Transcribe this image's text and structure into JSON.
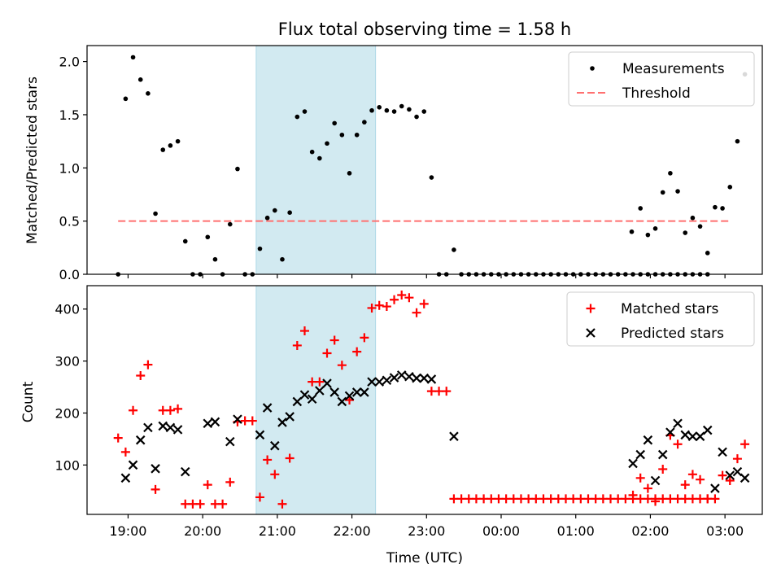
{
  "chart_data": [
    {
      "type": "scatter",
      "title": "Flux total observing time = 1.58 h",
      "xlabel": "",
      "ylabel": "Matched/Predicted stars",
      "ylim": [
        0,
        2.15
      ],
      "yticks": [
        0.0,
        0.5,
        1.0,
        1.5,
        2.0
      ],
      "ytick_labels": [
        "0.0",
        "0.5",
        "1.0",
        "1.5",
        "2.0"
      ],
      "xlim_hours": [
        18.45,
        27.5
      ],
      "xticks_hours": [
        19,
        20,
        21,
        22,
        23,
        24,
        25,
        26,
        27
      ],
      "shaded_span": [
        "20:43",
        "22:19"
      ],
      "shade_color": "#add8e6",
      "legend": {
        "position": "top-right",
        "entries": [
          "Measurements",
          "Threshold"
        ]
      },
      "series": [
        {
          "name": "Measurements",
          "marker": "dot",
          "color": "#000000",
          "points": [
            [
              "18:52",
              0.0
            ],
            [
              "18:58",
              1.65
            ],
            [
              "19:04",
              2.04
            ],
            [
              "19:10",
              1.83
            ],
            [
              "19:16",
              1.7
            ],
            [
              "19:22",
              0.57
            ],
            [
              "19:28",
              1.17
            ],
            [
              "19:34",
              1.21
            ],
            [
              "19:40",
              1.25
            ],
            [
              "19:46",
              0.31
            ],
            [
              "19:52",
              0.0
            ],
            [
              "19:58",
              0.0
            ],
            [
              "20:04",
              0.35
            ],
            [
              "20:10",
              0.14
            ],
            [
              "20:16",
              0.0
            ],
            [
              "20:22",
              0.47
            ],
            [
              "20:28",
              0.99
            ],
            [
              "20:34",
              0.0
            ],
            [
              "20:40",
              0.0
            ],
            [
              "20:46",
              0.24
            ],
            [
              "20:52",
              0.53
            ],
            [
              "20:58",
              0.6
            ],
            [
              "21:04",
              0.14
            ],
            [
              "21:10",
              0.58
            ],
            [
              "21:16",
              1.48
            ],
            [
              "21:22",
              1.53
            ],
            [
              "21:28",
              1.15
            ],
            [
              "21:34",
              1.09
            ],
            [
              "21:40",
              1.23
            ],
            [
              "21:46",
              1.42
            ],
            [
              "21:52",
              1.31
            ],
            [
              "21:58",
              0.95
            ],
            [
              "22:04",
              1.31
            ],
            [
              "22:10",
              1.43
            ],
            [
              "22:16",
              1.54
            ],
            [
              "22:22",
              1.57
            ],
            [
              "22:28",
              1.54
            ],
            [
              "22:34",
              1.53
            ],
            [
              "22:40",
              1.58
            ],
            [
              "22:46",
              1.55
            ],
            [
              "22:52",
              1.48
            ],
            [
              "22:58",
              1.53
            ],
            [
              "23:04",
              0.91
            ],
            [
              "23:10",
              0.0
            ],
            [
              "23:16",
              0.0
            ],
            [
              "23:22",
              0.23
            ],
            [
              "23:28",
              0.0
            ],
            [
              "23:34",
              0.0
            ],
            [
              "23:40",
              0.0
            ],
            [
              "23:46",
              0.0
            ],
            [
              "23:52",
              0.0
            ],
            [
              "23:58",
              0.0
            ],
            [
              "00:04",
              0.0
            ],
            [
              "00:10",
              0.0
            ],
            [
              "00:16",
              0.0
            ],
            [
              "00:22",
              0.0
            ],
            [
              "00:28",
              0.0
            ],
            [
              "00:34",
              0.0
            ],
            [
              "00:40",
              0.0
            ],
            [
              "00:46",
              0.0
            ],
            [
              "00:52",
              0.0
            ],
            [
              "00:58",
              0.0
            ],
            [
              "01:04",
              0.0
            ],
            [
              "01:10",
              0.0
            ],
            [
              "01:16",
              0.0
            ],
            [
              "01:22",
              0.0
            ],
            [
              "01:28",
              0.0
            ],
            [
              "01:34",
              0.0
            ],
            [
              "01:40",
              0.0
            ],
            [
              "01:46",
              0.0
            ],
            [
              "01:52",
              0.0
            ],
            [
              "01:58",
              0.0
            ],
            [
              "02:04",
              0.0
            ],
            [
              "02:10",
              0.0
            ],
            [
              "02:16",
              0.0
            ],
            [
              "02:22",
              0.0
            ],
            [
              "02:28",
              0.0
            ],
            [
              "02:34",
              0.0
            ],
            [
              "02:40",
              0.0
            ],
            [
              "02:46",
              0.0
            ],
            [
              "01:45",
              0.4
            ],
            [
              "01:52",
              0.62
            ],
            [
              "01:58",
              0.37
            ],
            [
              "02:04",
              0.43
            ],
            [
              "02:10",
              0.77
            ],
            [
              "02:16",
              0.95
            ],
            [
              "02:22",
              0.78
            ],
            [
              "02:28",
              0.39
            ],
            [
              "02:34",
              0.53
            ],
            [
              "02:40",
              0.45
            ],
            [
              "02:46",
              0.2
            ],
            [
              "02:52",
              0.63
            ],
            [
              "02:58",
              0.62
            ],
            [
              "03:04",
              0.82
            ],
            [
              "03:10",
              1.25
            ],
            [
              "03:16",
              1.88
            ]
          ]
        },
        {
          "name": "Threshold",
          "style": "dashed",
          "color": "#ff7070",
          "points": [
            [
              "18:52",
              0.5
            ],
            [
              "03:05",
              0.5
            ]
          ]
        }
      ]
    },
    {
      "type": "scatter",
      "title": "",
      "xlabel": "Time (UTC)",
      "ylabel": "Count",
      "ylim": [
        5,
        445
      ],
      "yticks": [
        100,
        200,
        300,
        400
      ],
      "ytick_labels": [
        "100",
        "200",
        "300",
        "400"
      ],
      "xlim_hours": [
        18.45,
        27.5
      ],
      "xticks_hours": [
        19,
        20,
        21,
        22,
        23,
        24,
        25,
        26,
        27
      ],
      "xtick_labels": [
        "19:00",
        "20:00",
        "21:00",
        "22:00",
        "23:00",
        "00:00",
        "01:00",
        "02:00",
        "03:00"
      ],
      "shaded_span": [
        "20:43",
        "22:19"
      ],
      "shade_color": "#add8e6",
      "legend": {
        "position": "top-right",
        "entries": [
          "Matched stars",
          "Predicted stars"
        ]
      },
      "series": [
        {
          "name": "Matched stars",
          "marker": "plus",
          "color": "#ff0000",
          "points": [
            [
              "18:52",
              152
            ],
            [
              "18:58",
              125
            ],
            [
              "19:04",
              205
            ],
            [
              "19:10",
              272
            ],
            [
              "19:16",
              293
            ],
            [
              "19:22",
              53
            ],
            [
              "19:28",
              205
            ],
            [
              "19:34",
              205
            ],
            [
              "19:40",
              208
            ],
            [
              "19:46",
              25
            ],
            [
              "19:52",
              25
            ],
            [
              "19:58",
              25
            ],
            [
              "20:04",
              62
            ],
            [
              "20:10",
              25
            ],
            [
              "20:16",
              25
            ],
            [
              "20:22",
              67
            ],
            [
              "20:28",
              183
            ],
            [
              "20:34",
              185
            ],
            [
              "20:40",
              185
            ],
            [
              "20:46",
              38
            ],
            [
              "20:52",
              110
            ],
            [
              "20:58",
              82
            ],
            [
              "21:04",
              25
            ],
            [
              "21:10",
              113
            ],
            [
              "21:16",
              330
            ],
            [
              "21:22",
              358
            ],
            [
              "21:28",
              260
            ],
            [
              "21:34",
              260
            ],
            [
              "21:40",
              315
            ],
            [
              "21:46",
              340
            ],
            [
              "21:52",
              292
            ],
            [
              "21:58",
              225
            ],
            [
              "22:04",
              318
            ],
            [
              "22:10",
              345
            ],
            [
              "22:16",
              402
            ],
            [
              "22:22",
              407
            ],
            [
              "22:28",
              405
            ],
            [
              "22:34",
              418
            ],
            [
              "22:40",
              427
            ],
            [
              "22:46",
              422
            ],
            [
              "22:52",
              393
            ],
            [
              "22:58",
              410
            ],
            [
              "23:04",
              242
            ],
            [
              "23:10",
              242
            ],
            [
              "23:16",
              242
            ],
            [
              "23:22",
              35
            ],
            [
              "23:28",
              35
            ],
            [
              "23:34",
              35
            ],
            [
              "23:40",
              35
            ],
            [
              "23:46",
              35
            ],
            [
              "23:52",
              35
            ],
            [
              "23:58",
              35
            ],
            [
              "00:04",
              35
            ],
            [
              "00:10",
              35
            ],
            [
              "00:16",
              35
            ],
            [
              "00:22",
              35
            ],
            [
              "00:28",
              35
            ],
            [
              "00:34",
              35
            ],
            [
              "00:40",
              35
            ],
            [
              "00:46",
              35
            ],
            [
              "00:52",
              35
            ],
            [
              "00:58",
              35
            ],
            [
              "01:04",
              35
            ],
            [
              "01:10",
              35
            ],
            [
              "01:16",
              35
            ],
            [
              "01:22",
              35
            ],
            [
              "01:28",
              35
            ],
            [
              "01:34",
              35
            ],
            [
              "01:40",
              35
            ],
            [
              "01:46",
              35
            ],
            [
              "01:52",
              35
            ],
            [
              "01:58",
              35
            ],
            [
              "02:04",
              35
            ],
            [
              "02:10",
              35
            ],
            [
              "02:16",
              35
            ],
            [
              "02:22",
              35
            ],
            [
              "02:28",
              35
            ],
            [
              "02:34",
              35
            ],
            [
              "02:40",
              35
            ],
            [
              "02:46",
              35
            ],
            [
              "01:46",
              42
            ],
            [
              "01:52",
              75
            ],
            [
              "01:58",
              55
            ],
            [
              "02:04",
              30
            ],
            [
              "02:10",
              92
            ],
            [
              "02:16",
              157
            ],
            [
              "02:22",
              140
            ],
            [
              "02:28",
              62
            ],
            [
              "02:34",
              82
            ],
            [
              "02:40",
              72
            ],
            [
              "02:46",
              35
            ],
            [
              "02:52",
              35
            ],
            [
              "02:58",
              80
            ],
            [
              "03:04",
              70
            ],
            [
              "03:10",
              112
            ],
            [
              "03:16",
              140
            ]
          ]
        },
        {
          "name": "Predicted stars",
          "marker": "x",
          "color": "#000000",
          "points": [
            [
              "18:58",
              75
            ],
            [
              "19:04",
              100
            ],
            [
              "19:10",
              148
            ],
            [
              "19:16",
              172
            ],
            [
              "19:22",
              93
            ],
            [
              "19:28",
              175
            ],
            [
              "19:34",
              172
            ],
            [
              "19:40",
              168
            ],
            [
              "19:46",
              87
            ],
            [
              "20:04",
              180
            ],
            [
              "20:10",
              183
            ],
            [
              "20:22",
              145
            ],
            [
              "20:28",
              188
            ],
            [
              "20:46",
              158
            ],
            [
              "20:52",
              210
            ],
            [
              "20:58",
              137
            ],
            [
              "21:04",
              182
            ],
            [
              "21:10",
              193
            ],
            [
              "21:16",
              222
            ],
            [
              "21:22",
              235
            ],
            [
              "21:28",
              227
            ],
            [
              "21:34",
              243
            ],
            [
              "21:40",
              257
            ],
            [
              "21:46",
              240
            ],
            [
              "21:52",
              222
            ],
            [
              "21:58",
              233
            ],
            [
              "22:04",
              240
            ],
            [
              "22:10",
              240
            ],
            [
              "22:16",
              260
            ],
            [
              "22:22",
              260
            ],
            [
              "22:28",
              263
            ],
            [
              "22:34",
              268
            ],
            [
              "22:40",
              273
            ],
            [
              "22:46",
              270
            ],
            [
              "22:52",
              267
            ],
            [
              "22:58",
              267
            ],
            [
              "23:04",
              265
            ],
            [
              "23:22",
              155
            ],
            [
              "01:46",
              103
            ],
            [
              "01:52",
              120
            ],
            [
              "01:58",
              148
            ],
            [
              "02:04",
              70
            ],
            [
              "02:10",
              120
            ],
            [
              "02:16",
              163
            ],
            [
              "02:22",
              180
            ],
            [
              "02:28",
              158
            ],
            [
              "02:34",
              155
            ],
            [
              "02:40",
              155
            ],
            [
              "02:46",
              167
            ],
            [
              "02:52",
              55
            ],
            [
              "02:58",
              125
            ],
            [
              "03:04",
              80
            ],
            [
              "03:10",
              87
            ],
            [
              "03:16",
              75
            ]
          ]
        }
      ]
    }
  ]
}
